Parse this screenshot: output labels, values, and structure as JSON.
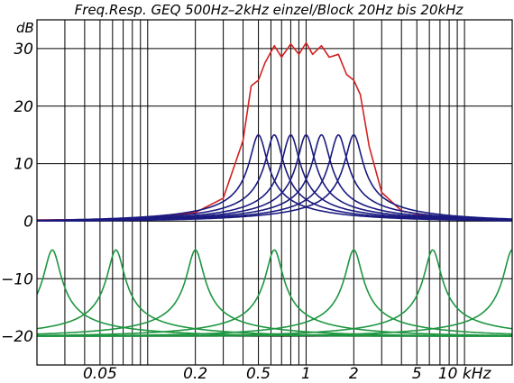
{
  "chart_data": {
    "type": "line",
    "title": "Freq.Resp. GEQ 500Hz–2kHz einzel/Block 20Hz bis 20kHz",
    "ylabel": "dB",
    "xlabel": "",
    "xscale": "log",
    "x_unit": "kHz",
    "xlim_khz": [
      0.02,
      20
    ],
    "ylim": [
      -25,
      35
    ],
    "grid": true,
    "y_ticks": [
      {
        "value": 30,
        "label": "30"
      },
      {
        "value": 20,
        "label": "20"
      },
      {
        "value": 10,
        "label": "10"
      },
      {
        "value": 0,
        "label": "0"
      },
      {
        "value": -10,
        "label": "−10"
      },
      {
        "value": -20,
        "label": "−20"
      }
    ],
    "x_tick_labels": [
      {
        "value": 0.05,
        "label": "0.05"
      },
      {
        "value": 0.2,
        "label": "0.2"
      },
      {
        "value": 0.5,
        "label": "0.5"
      },
      {
        "value": 1,
        "label": "1"
      },
      {
        "value": 2,
        "label": "2"
      },
      {
        "value": 5,
        "label": "5"
      },
      {
        "value": 10,
        "label": "10 kHz"
      }
    ],
    "series": [
      {
        "color": "#d42020",
        "role": "sum",
        "points": [
          [
            0.02,
            0.2
          ],
          [
            0.05,
            0.3
          ],
          [
            0.1,
            0.6
          ],
          [
            0.2,
            1.5
          ],
          [
            0.3,
            4
          ],
          [
            0.4,
            14
          ],
          [
            0.45,
            23.5
          ],
          [
            0.5,
            24.5
          ],
          [
            0.55,
            27.5
          ],
          [
            0.63,
            30.5
          ],
          [
            0.7,
            28.5
          ],
          [
            0.8,
            30.8
          ],
          [
            0.9,
            29
          ],
          [
            1.0,
            31
          ],
          [
            1.1,
            29
          ],
          [
            1.25,
            30.5
          ],
          [
            1.4,
            28.5
          ],
          [
            1.6,
            29
          ],
          [
            1.8,
            25.5
          ],
          [
            2.0,
            24.5
          ],
          [
            2.2,
            22
          ],
          [
            2.5,
            13
          ],
          [
            3,
            5
          ],
          [
            4,
            1.8
          ],
          [
            6,
            0.8
          ],
          [
            10,
            0.4
          ],
          [
            20,
            0.3
          ]
        ]
      },
      {
        "color": "#1a1a80",
        "role": "single bands, 15 dB each",
        "centers_khz": [
          0.5,
          0.63,
          0.8,
          1.0,
          1.25,
          1.6,
          2.0
        ],
        "peak_db": 15,
        "base_db": 0
      },
      {
        "color": "#1e9640",
        "role": "single bands, 15 dB each",
        "centers_khz": [
          0.025,
          0.063,
          0.2,
          0.63,
          2.0,
          6.3,
          20
        ],
        "peak_db": -5,
        "base_db": -20
      }
    ]
  }
}
